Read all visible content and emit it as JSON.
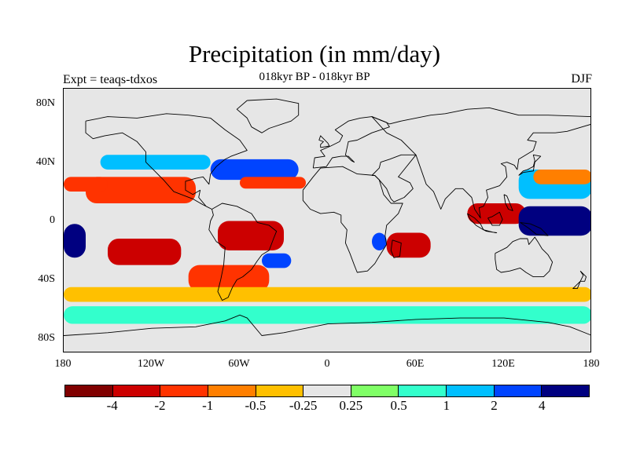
{
  "title": "Precipitation (in mm/day)",
  "subtitle": "018kyr BP - 018kyr BP",
  "experiment_label": "Expt = teaqs-tdxos",
  "season_label": "DJF",
  "map": {
    "projection": "cylindrical-equidistant",
    "lon_range": [
      -180,
      180
    ],
    "lat_range": [
      -90,
      90
    ],
    "lat_ticks": [
      "80N",
      "40N",
      "0",
      "40S",
      "80S"
    ],
    "lon_ticks": [
      "180",
      "120W",
      "60W",
      "0",
      "60E",
      "120E",
      "180"
    ],
    "background_color": "#e6e6e6",
    "coastline_color": "#000000"
  },
  "colorbar": {
    "colors": [
      "#800000",
      "#cc0000",
      "#ff3300",
      "#ff7f00",
      "#ffc000",
      "#e6e6e6",
      "#80ff66",
      "#33ffcc",
      "#00bfff",
      "#0044ff",
      "#000080"
    ],
    "labels": [
      "-4",
      "-2",
      "-1",
      "-0.5",
      "-0.25",
      "0.25",
      "0.5",
      "1",
      "2",
      "4"
    ]
  },
  "chart_data": {
    "type": "heatmap",
    "title": "Precipitation (in mm/day)",
    "subtitle": "018kyr BP - 018kyr BP",
    "xlabel": "",
    "ylabel": "",
    "xlim": [
      -180,
      180
    ],
    "ylim": [
      -90,
      90
    ],
    "levels": [
      -4,
      -2,
      -1,
      -0.5,
      -0.25,
      0.25,
      0.5,
      1,
      2,
      4
    ],
    "regions": [
      {
        "lon": [
          -180,
          -165
        ],
        "lat": [
          -25,
          -2
        ],
        "level": 4
      },
      {
        "lon": [
          -165,
          -90
        ],
        "lat": [
          12,
          30
        ],
        "level": -2
      },
      {
        "lon": [
          -150,
          -100
        ],
        "lat": [
          -30,
          -12
        ],
        "level": -4
      },
      {
        "lon": [
          -180,
          -150
        ],
        "lat": [
          20,
          30
        ],
        "level": -2
      },
      {
        "lon": [
          -155,
          -80
        ],
        "lat": [
          35,
          45
        ],
        "level": 1
      },
      {
        "lon": [
          -80,
          -20
        ],
        "lat": [
          28,
          42
        ],
        "level": 2
      },
      {
        "lon": [
          -60,
          -15
        ],
        "lat": [
          22,
          30
        ],
        "level": -2
      },
      {
        "lon": [
          -75,
          -30
        ],
        "lat": [
          -20,
          0
        ],
        "level": -4
      },
      {
        "lon": [
          -45,
          -25
        ],
        "lat": [
          -32,
          -22
        ],
        "level": 2
      },
      {
        "lon": [
          -95,
          -40
        ],
        "lat": [
          -48,
          -30
        ],
        "level": -2
      },
      {
        "lon": [
          40,
          70
        ],
        "lat": [
          -25,
          -8
        ],
        "level": -4
      },
      {
        "lon": [
          30,
          40
        ],
        "lat": [
          -20,
          -8
        ],
        "level": 2
      },
      {
        "lon": [
          95,
          135
        ],
        "lat": [
          -2,
          12
        ],
        "level": -4
      },
      {
        "lon": [
          130,
          180
        ],
        "lat": [
          -10,
          10
        ],
        "level": 4
      },
      {
        "lon": [
          130,
          180
        ],
        "lat": [
          15,
          35
        ],
        "level": 1
      },
      {
        "lon": [
          140,
          180
        ],
        "lat": [
          25,
          35
        ],
        "level": -1
      },
      {
        "lon": [
          -180,
          180
        ],
        "lat": [
          -70,
          -58
        ],
        "level": 0.5
      },
      {
        "lon": [
          -180,
          180
        ],
        "lat": [
          -55,
          -45
        ],
        "level": -0.5
      }
    ]
  }
}
